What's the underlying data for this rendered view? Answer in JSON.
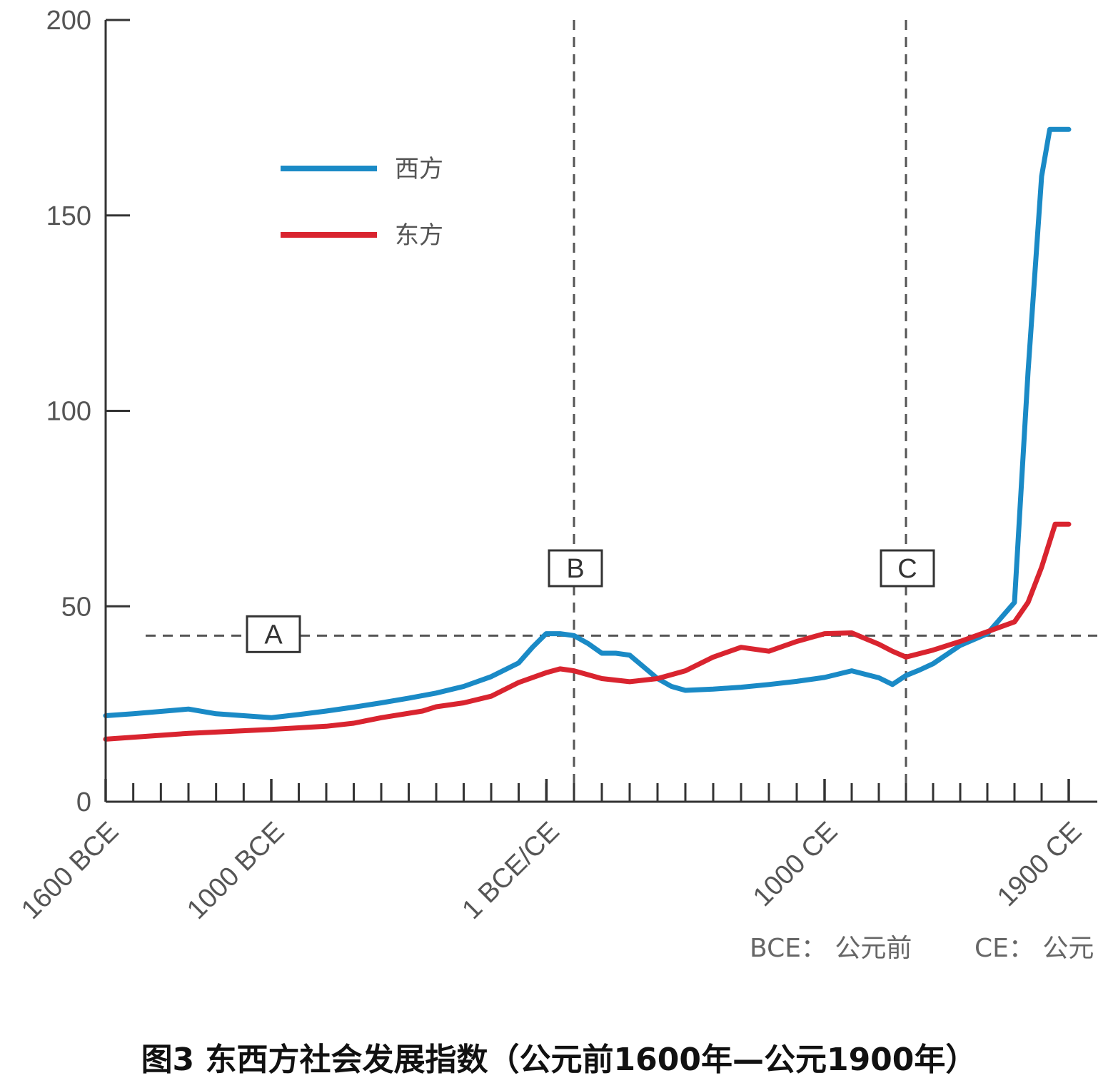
{
  "caption": "图3 东西方社会发展指数（公元前1600年—公元1900年）",
  "chart_data": {
    "type": "line",
    "title": "图3 东西方社会发展指数（公元前1600年—公元1900年）",
    "xlabel": "",
    "ylabel": "",
    "xlim": [
      -1600,
      1900
    ],
    "ylim": [
      0,
      200
    ],
    "yticks": [
      0,
      50,
      100,
      150,
      200
    ],
    "ytick_labels": [
      "0",
      "50",
      "100",
      "150",
      "200"
    ],
    "xticks": [
      -1600,
      -1000,
      1,
      1000,
      1900
    ],
    "xtick_labels": [
      "1600 BCE",
      "1000 BCE",
      "1 BCE/CE",
      "1000 CE",
      "1900 CE"
    ],
    "minor_tick_step": 100,
    "legend_position": "top-left",
    "colors": {
      "west": "#1a8ac6",
      "east": "#d9242f",
      "axis": "#333333",
      "reference": "#555555"
    },
    "series": [
      {
        "name": "西方",
        "x": [
          -1600,
          -1500,
          -1300,
          -1200,
          -1000,
          -900,
          -800,
          -700,
          -600,
          -500,
          -400,
          -300,
          -200,
          -100,
          -50,
          0,
          50,
          100,
          150,
          200,
          250,
          300,
          400,
          450,
          500,
          600,
          700,
          800,
          900,
          1000,
          1100,
          1200,
          1250,
          1300,
          1350,
          1400,
          1500,
          1600,
          1700,
          1750,
          1800,
          1830,
          1900
        ],
        "values": [
          22,
          22.5,
          23.7,
          22.5,
          21.5,
          22.3,
          23.2,
          24.2,
          25.3,
          26.5,
          27.8,
          29.5,
          32,
          35.5,
          39.5,
          43,
          43,
          42.5,
          40.5,
          38,
          38,
          37.5,
          31.5,
          29.5,
          28.5,
          28.8,
          29.3,
          30,
          30.8,
          31.8,
          33.5,
          31.7,
          30,
          32.3,
          33.7,
          35.3,
          40,
          43,
          51,
          110,
          160,
          172,
          172
        ]
      },
      {
        "name": "东方",
        "x": [
          -1600,
          -1300,
          -1000,
          -800,
          -700,
          -600,
          -450,
          -400,
          -300,
          -200,
          -100,
          0,
          50,
          100,
          200,
          300,
          400,
          500,
          600,
          700,
          800,
          900,
          1000,
          1100,
          1200,
          1250,
          1300,
          1400,
          1500,
          1600,
          1700,
          1750,
          1800,
          1850,
          1900
        ],
        "values": [
          16,
          17.5,
          18.5,
          19.3,
          20.1,
          21.5,
          23.2,
          24.3,
          25.3,
          27,
          30.5,
          33,
          34,
          33.5,
          31.5,
          30.7,
          31.5,
          33.5,
          37,
          39.5,
          38.5,
          41,
          43,
          43.2,
          40.3,
          38.5,
          37,
          38.8,
          41,
          43.5,
          46,
          51,
          60,
          71,
          71
        ]
      }
    ],
    "reference_lines": [
      {
        "orientation": "horizontal",
        "y": 42.5,
        "label": "A"
      },
      {
        "orientation": "vertical",
        "x": 100,
        "label": "B"
      },
      {
        "orientation": "vertical",
        "x": 1300,
        "label": "C"
      }
    ],
    "annotations": [
      "BCE： 公元前",
      "CE： 公元"
    ]
  }
}
